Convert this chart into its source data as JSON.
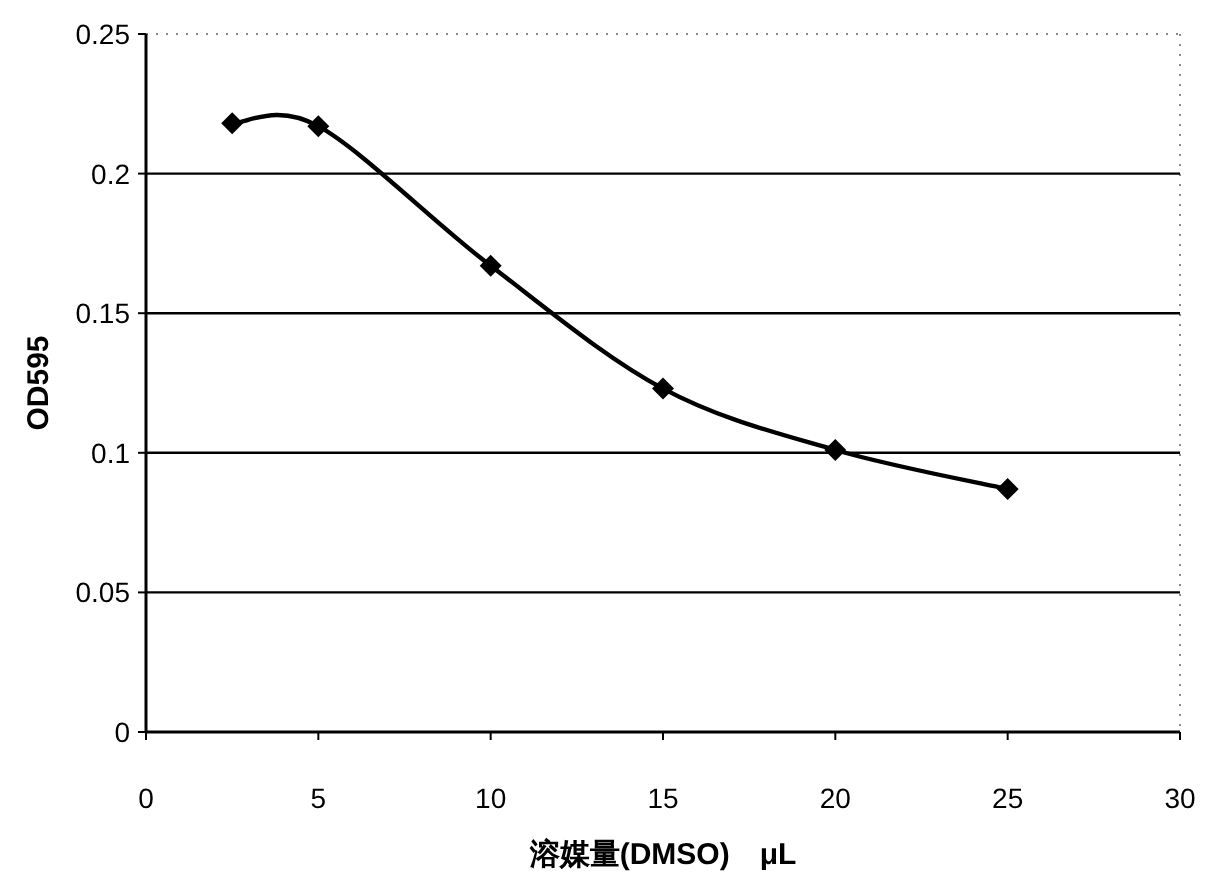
{
  "chart_data": {
    "type": "line",
    "xlabel": "溶媒量(DMSO)　μL",
    "ylabel": "OD595",
    "series": [
      {
        "x": [
          2.5,
          5,
          10,
          15,
          20,
          25
        ],
        "values": [
          0.218,
          0.217,
          0.167,
          0.123,
          0.101,
          0.087
        ],
        "color": "#000000"
      }
    ],
    "xlim": [
      0,
      30
    ],
    "xticks": [
      0,
      5,
      10,
      15,
      20,
      25,
      30
    ],
    "ylim": [
      0,
      0.25
    ],
    "yticks": [
      0,
      0.05,
      0.1,
      0.15,
      0.2,
      0.25
    ],
    "grid": "y",
    "marker": "diamond"
  }
}
